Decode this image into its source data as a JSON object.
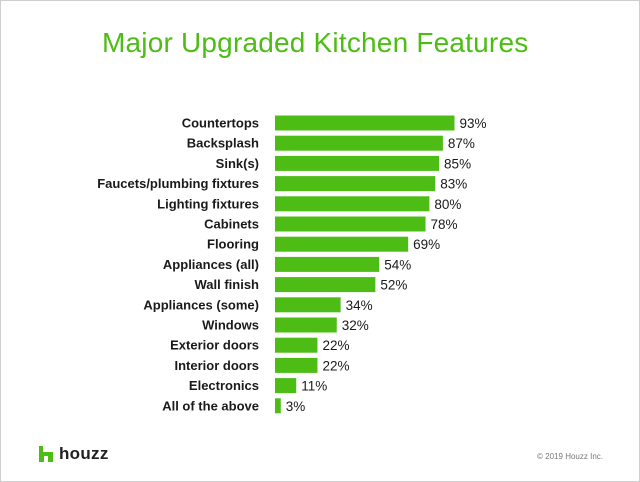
{
  "chart_data": {
    "type": "bar",
    "orientation": "horizontal",
    "title": "Major Upgraded Kitchen Features",
    "categories": [
      "Countertops",
      "Backsplash",
      "Sink(s)",
      "Faucets/plumbing fixtures",
      "Lighting fixtures",
      "Cabinets",
      "Flooring",
      "Appliances (all)",
      "Wall finish",
      "Appliances (some)",
      "Windows",
      "Exterior doors",
      "Interior doors",
      "Electronics",
      "All of the above"
    ],
    "values": [
      93,
      87,
      85,
      83,
      80,
      78,
      69,
      54,
      52,
      34,
      32,
      22,
      22,
      11,
      3
    ],
    "value_labels": [
      "93%",
      "87%",
      "85%",
      "83%",
      "80%",
      "78%",
      "69%",
      "54%",
      "52%",
      "34%",
      "32%",
      "22%",
      "22%",
      "11%",
      "3%"
    ],
    "xlim": [
      0,
      100
    ],
    "grid": false,
    "bar_color": "#4dbc15"
  },
  "branding": {
    "logo_text": "houzz",
    "logo_icon": "houzz-logo-icon",
    "logo_color": "#4dbc15",
    "copyright": "© 2019 Houzz Inc."
  }
}
